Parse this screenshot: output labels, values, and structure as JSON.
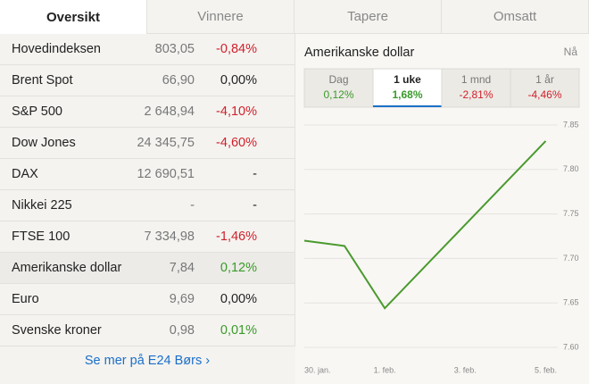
{
  "tabs": [
    "Oversikt",
    "Vinnere",
    "Tapere",
    "Omsatt"
  ],
  "table": {
    "rows": [
      [
        "Hovedindeksen",
        "803,05",
        "-0,84%"
      ],
      [
        "Brent Spot",
        "66,90",
        "0,00%"
      ],
      [
        "S&P 500",
        "2 648,94",
        "-4,10%"
      ],
      [
        "Dow Jones",
        "24 345,75",
        "-4,60%"
      ],
      [
        "DAX",
        "12 690,51",
        "-"
      ],
      [
        "Nikkei 225",
        "-",
        "-"
      ],
      [
        "FTSE 100",
        "7 334,98",
        "-1,46%"
      ],
      [
        "Amerikanske dollar",
        "7,84",
        "0,12%"
      ],
      [
        "Euro",
        "9,69",
        "0,00%"
      ],
      [
        "Svenske kroner",
        "0,98",
        "0,01%"
      ]
    ]
  },
  "link": "Se mer på E24 Børs ›",
  "panel": {
    "title": "Amerikanske dollar",
    "now": "Nå",
    "periods": [
      {
        "label": "Dag",
        "change": "0,12%"
      },
      {
        "label": "1 uke",
        "change": "1,68%"
      },
      {
        "label": "1 mnd",
        "change": "-2,81%"
      },
      {
        "label": "1 år",
        "change": "-4,46%"
      }
    ]
  },
  "chart": {
    "type": "line",
    "color": "#4a9a2e",
    "x": [
      0,
      1,
      2,
      6
    ],
    "values": [
      7.72,
      7.714,
      7.644,
      7.832
    ],
    "xlim": [
      0,
      6.3
    ],
    "xticks": [
      {
        "value": 0,
        "label": "30. jan."
      },
      {
        "value": 2,
        "label": "1. feb."
      },
      {
        "value": 4,
        "label": "3. feb."
      },
      {
        "value": 6,
        "label": "5. feb."
      }
    ],
    "ylim": [
      7.59,
      7.86
    ],
    "yticks": [
      7.85,
      {
        "value": 7.8,
        "label": "7.80"
      },
      7.75,
      {
        "value": 7.7,
        "label": "7.70"
      },
      7.65,
      {
        "value": 7.6,
        "label": "7.60"
      }
    ],
    "grid": true
  }
}
